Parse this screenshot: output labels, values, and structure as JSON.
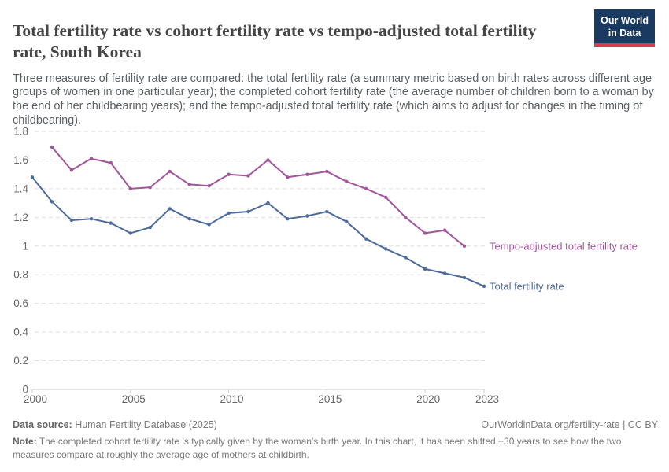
{
  "header": {
    "title": "Total fertility rate vs cohort fertility rate vs tempo-adjusted total fertility rate, South Korea",
    "subtitle": "Three measures of fertility rate are compared: the total fertility rate (a summary metric based on birth rates across different age groups of women in one particular year); the completed cohort fertility rate (the average number of children born to a woman by the end of her childbearing years); and the tempo-adjusted total fertility rate (which aims to adjust for changes in the timing of childbearing).",
    "logo": {
      "line1": "Our World",
      "line2": "in Data"
    }
  },
  "chart_data": {
    "type": "line",
    "title": "Total fertility rate vs cohort fertility rate vs tempo-adjusted total fertility rate, South Korea",
    "xlabel": "",
    "ylabel": "",
    "xlim": [
      2000,
      2023
    ],
    "ylim": [
      0,
      1.8
    ],
    "xticks": [
      2000,
      2005,
      2010,
      2015,
      2020,
      2023
    ],
    "yticks": [
      0,
      0.2,
      0.4,
      0.6,
      0.8,
      1,
      1.2,
      1.4,
      1.6,
      1.8
    ],
    "grid": "horizontal-dashed",
    "legend_position": "labels-at-line-ends-right",
    "series": [
      {
        "name": "Tempo-adjusted total fertility rate",
        "color": "#A2559C",
        "start_year": 2001,
        "values": [
          1.69,
          1.53,
          1.61,
          1.58,
          1.4,
          1.41,
          1.52,
          1.43,
          1.42,
          1.5,
          1.49,
          1.6,
          1.48,
          1.5,
          1.52,
          1.45,
          1.4,
          1.34,
          1.2,
          1.09,
          1.11,
          1.0
        ]
      },
      {
        "name": "Total fertility rate",
        "color": "#4C6A9C",
        "start_year": 2000,
        "values": [
          1.48,
          1.31,
          1.18,
          1.19,
          1.16,
          1.09,
          1.13,
          1.26,
          1.19,
          1.15,
          1.23,
          1.24,
          1.3,
          1.19,
          1.21,
          1.24,
          1.17,
          1.05,
          0.98,
          0.92,
          0.84,
          0.81,
          0.78,
          0.72
        ]
      }
    ]
  },
  "footer": {
    "datasource_label": "Data source:",
    "datasource_text": " Human Fertility Database (2025)",
    "url_text": "OurWorldinData.org/fertility-rate | CC BY",
    "note_label": "Note:",
    "note_text": " The completed cohort fertility rate is typically given by the woman's birth year. In this chart, it has been shifted +30 years to see how the two measures compare at roughly the average age of mothers at childbirth."
  },
  "colors": {
    "tempo_adjusted_line": "#A2559C",
    "total_fertility_line": "#4C6A9C",
    "grid": "#dedede",
    "axis": "#cccccc",
    "tick_label": "#666666",
    "logo_bg": "#1a3a62",
    "logo_accent": "#d93b4c"
  }
}
